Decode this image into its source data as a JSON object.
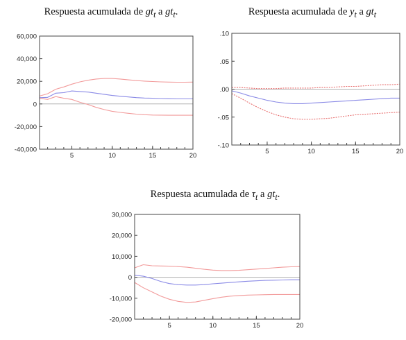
{
  "chart_data": [
    {
      "type": "line",
      "title": {
        "prefix": "Respuesta acumulada de ",
        "resp_var": "gt",
        "resp_sub": "t",
        "mid": " a ",
        "shock_var": "gt",
        "shock_sub": "t",
        "suffix": "."
      },
      "xlim": [
        1,
        20
      ],
      "ylim": [
        -40000,
        60000
      ],
      "xticks": [
        5,
        10,
        15,
        20
      ],
      "yticks": [
        60000,
        40000,
        20000,
        0,
        -20000,
        -40000
      ],
      "ytick_labels": [
        "60,000",
        "40,000",
        "20,000",
        "0",
        "-20,000",
        "-40,000"
      ],
      "grid": false,
      "series": [
        {
          "role": "upper",
          "color": "#f29a9a",
          "dashed": false,
          "x": [
            1,
            2,
            3,
            4,
            5,
            6,
            7,
            8,
            9,
            10,
            11,
            12,
            13,
            14,
            15,
            16,
            17,
            18,
            19,
            20
          ],
          "values": [
            7000,
            9000,
            13000,
            15000,
            17500,
            19500,
            21000,
            22000,
            22500,
            22500,
            22000,
            21300,
            20700,
            20200,
            19800,
            19500,
            19300,
            19200,
            19200,
            19300
          ]
        },
        {
          "role": "response",
          "color": "#8a8ae6",
          "dashed": false,
          "x": [
            1,
            2,
            3,
            4,
            5,
            6,
            7,
            8,
            9,
            10,
            11,
            12,
            13,
            14,
            15,
            16,
            17,
            18,
            19,
            20
          ],
          "values": [
            5500,
            5800,
            9500,
            10000,
            11500,
            11000,
            10500,
            9500,
            8500,
            7500,
            6800,
            6200,
            5600,
            5200,
            5000,
            4800,
            4600,
            4500,
            4500,
            4500
          ]
        },
        {
          "role": "lower",
          "color": "#f29a9a",
          "dashed": false,
          "x": [
            1,
            2,
            3,
            4,
            5,
            6,
            7,
            8,
            9,
            10,
            11,
            12,
            13,
            14,
            15,
            16,
            17,
            18,
            19,
            20
          ],
          "values": [
            5000,
            4000,
            6500,
            5000,
            4000,
            1500,
            -500,
            -3000,
            -5000,
            -6500,
            -7500,
            -8300,
            -9000,
            -9500,
            -9800,
            -9900,
            -10000,
            -10000,
            -10000,
            -10000
          ]
        }
      ]
    },
    {
      "type": "line",
      "title": {
        "prefix": "Respuesta acumulada de ",
        "resp_var": "y",
        "resp_sub": "t",
        "mid": " a ",
        "shock_var": "gt",
        "shock_sub": "t",
        "suffix": ""
      },
      "xlim": [
        1,
        20
      ],
      "ylim": [
        -0.1,
        0.1
      ],
      "xticks": [
        5,
        10,
        15,
        20
      ],
      "yticks": [
        0.1,
        0.05,
        0.0,
        -0.05,
        -0.1
      ],
      "ytick_labels": [
        ".10",
        ".05",
        ".00",
        "-.05",
        "-.10"
      ],
      "grid": false,
      "series": [
        {
          "role": "upper",
          "color": "#e87070",
          "dashed": true,
          "x": [
            1,
            2,
            3,
            4,
            5,
            6,
            7,
            8,
            9,
            10,
            11,
            12,
            13,
            14,
            15,
            16,
            17,
            18,
            19,
            20
          ],
          "values": [
            0.003,
            0.003,
            0.002,
            0.001,
            0.001,
            0.001,
            0.002,
            0.002,
            0.002,
            0.002,
            0.003,
            0.003,
            0.004,
            0.005,
            0.005,
            0.006,
            0.007,
            0.008,
            0.008,
            0.009
          ]
        },
        {
          "role": "response",
          "color": "#8a8ae6",
          "dashed": false,
          "x": [
            1,
            2,
            3,
            4,
            5,
            6,
            7,
            8,
            9,
            10,
            11,
            12,
            13,
            14,
            15,
            16,
            17,
            18,
            19,
            20
          ],
          "values": [
            -0.003,
            -0.007,
            -0.012,
            -0.016,
            -0.02,
            -0.023,
            -0.025,
            -0.026,
            -0.026,
            -0.025,
            -0.024,
            -0.023,
            -0.022,
            -0.021,
            -0.02,
            -0.019,
            -0.018,
            -0.017,
            -0.016,
            -0.016
          ]
        },
        {
          "role": "lower",
          "color": "#e87070",
          "dashed": true,
          "x": [
            1,
            2,
            3,
            4,
            5,
            6,
            7,
            8,
            9,
            10,
            11,
            12,
            13,
            14,
            15,
            16,
            17,
            18,
            19,
            20
          ],
          "values": [
            -0.008,
            -0.016,
            -0.025,
            -0.033,
            -0.04,
            -0.046,
            -0.05,
            -0.053,
            -0.054,
            -0.054,
            -0.053,
            -0.052,
            -0.05,
            -0.048,
            -0.046,
            -0.045,
            -0.044,
            -0.043,
            -0.042,
            -0.041
          ]
        }
      ]
    },
    {
      "type": "line",
      "title": {
        "prefix": "Respuesta acumulada de ",
        "resp_var": "τ",
        "resp_sub": "t",
        "mid": " a ",
        "shock_var": "gt",
        "shock_sub": "t",
        "suffix": "."
      },
      "xlim": [
        1,
        20
      ],
      "ylim": [
        -20000,
        30000
      ],
      "xticks": [
        5,
        10,
        15,
        20
      ],
      "yticks": [
        30000,
        20000,
        10000,
        0,
        -10000,
        -20000
      ],
      "ytick_labels": [
        "30,000",
        "20,000",
        "10,000",
        "0",
        "-10,000",
        "-20,000"
      ],
      "grid": false,
      "series": [
        {
          "role": "upper",
          "color": "#f29a9a",
          "dashed": false,
          "x": [
            1,
            2,
            3,
            4,
            5,
            6,
            7,
            8,
            9,
            10,
            11,
            12,
            13,
            14,
            15,
            16,
            17,
            18,
            19,
            20
          ],
          "values": [
            4500,
            6000,
            5500,
            5400,
            5300,
            5100,
            4800,
            4300,
            3800,
            3400,
            3200,
            3200,
            3300,
            3600,
            3900,
            4200,
            4500,
            4800,
            5000,
            5100
          ]
        },
        {
          "role": "response",
          "color": "#8a8ae6",
          "dashed": false,
          "x": [
            1,
            2,
            3,
            4,
            5,
            6,
            7,
            8,
            9,
            10,
            11,
            12,
            13,
            14,
            15,
            16,
            17,
            18,
            19,
            20
          ],
          "values": [
            1000,
            500,
            -600,
            -2000,
            -3000,
            -3500,
            -3700,
            -3700,
            -3500,
            -3100,
            -2800,
            -2500,
            -2200,
            -1900,
            -1700,
            -1500,
            -1400,
            -1300,
            -1200,
            -1200
          ]
        },
        {
          "role": "lower",
          "color": "#f29a9a",
          "dashed": false,
          "x": [
            1,
            2,
            3,
            4,
            5,
            6,
            7,
            8,
            9,
            10,
            11,
            12,
            13,
            14,
            15,
            16,
            17,
            18,
            19,
            20
          ],
          "values": [
            -2500,
            -5000,
            -7000,
            -9000,
            -10500,
            -11500,
            -12000,
            -11800,
            -11000,
            -10200,
            -9500,
            -9000,
            -8700,
            -8500,
            -8400,
            -8300,
            -8200,
            -8200,
            -8200,
            -8200
          ]
        }
      ]
    }
  ]
}
